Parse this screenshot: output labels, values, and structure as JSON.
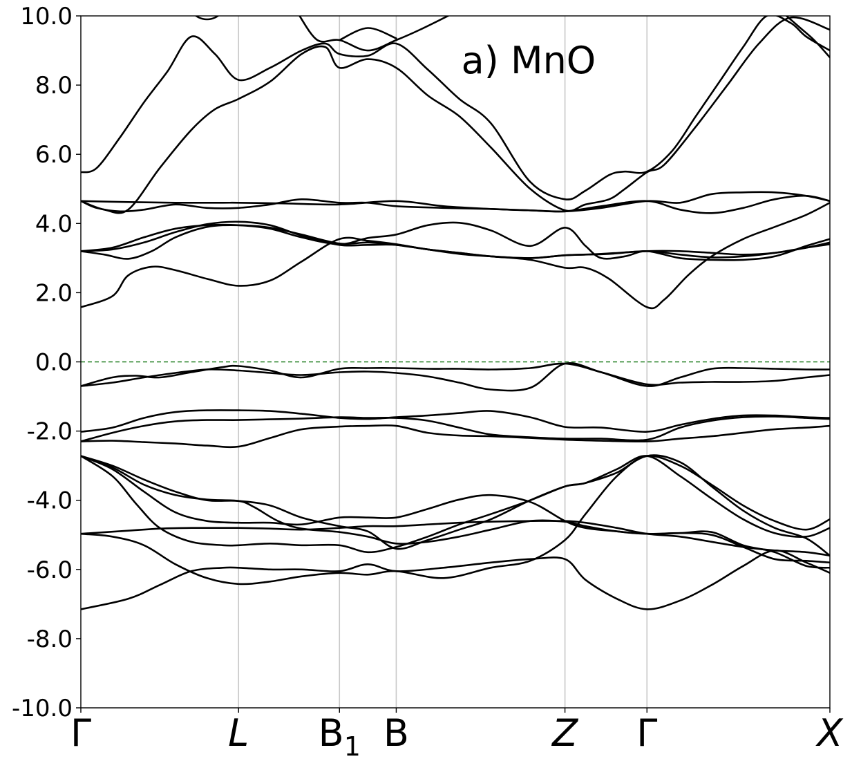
{
  "chart_data": {
    "type": "line",
    "title": "a) MnO",
    "xlabel": "",
    "ylabel": "",
    "ylim": [
      -10,
      10
    ],
    "yticks": [
      -10,
      -8,
      -6,
      -4,
      -2,
      0,
      2,
      4,
      6,
      8,
      10
    ],
    "ytick_labels": [
      "-10.0",
      "-8.0",
      "-6.0",
      "-4.0",
      "-2.0",
      "0.0",
      "2.0",
      "4.0",
      "6.0",
      "8.0",
      "10.0"
    ],
    "xlim": [
      0,
      4.75
    ],
    "kpoints": [
      {
        "label": "Γ",
        "sub": "",
        "italic": false,
        "x": 0.0
      },
      {
        "label": "L",
        "sub": "",
        "italic": true,
        "x": 1.0
      },
      {
        "label": "B",
        "sub": "1",
        "italic": false,
        "x": 1.64
      },
      {
        "label": "B",
        "sub": "",
        "italic": false,
        "x": 2.0
      },
      {
        "label": "Z",
        "sub": "",
        "italic": true,
        "x": 3.07
      },
      {
        "label": "Γ",
        "sub": "",
        "italic": false,
        "x": 3.59
      },
      {
        "label": "X",
        "sub": "",
        "italic": true,
        "x": 4.75
      }
    ],
    "fermi_level": 0.0,
    "grid": "vertical lines at high-symmetry points",
    "legend": "none",
    "colors": {
      "bands": "#000000",
      "fermi": "#1a7a1a",
      "vlines": "#c8c8c8"
    },
    "series": [
      {
        "x": [
          0,
          0.3,
          0.5,
          0.7,
          0.9,
          1.0,
          1.2,
          1.4,
          1.64,
          1.82,
          2.0,
          2.3,
          2.6,
          2.85,
          3.07,
          3.2,
          3.4,
          3.59,
          3.8,
          4.0,
          4.2,
          4.4,
          4.6,
          4.75
        ],
        "y": [
          -7.15,
          -6.85,
          -6.45,
          -6.05,
          -5.95,
          -5.95,
          -6.0,
          -6.0,
          -6.05,
          -5.85,
          -6.05,
          -5.95,
          -5.8,
          -5.7,
          -5.7,
          -6.3,
          -6.85,
          -7.15,
          -6.9,
          -6.45,
          -5.9,
          -5.45,
          -5.8,
          -6.1
        ]
      },
      {
        "x": [
          0,
          0.2,
          0.4,
          0.6,
          0.8,
          1.0,
          1.2,
          1.4,
          1.64,
          1.82,
          2.0,
          2.3,
          2.6,
          2.85,
          3.07,
          3.2,
          3.4,
          3.59,
          3.8,
          4.0,
          4.2,
          4.4,
          4.6,
          4.75
        ],
        "y": [
          -4.97,
          -5.05,
          -5.3,
          -5.85,
          -6.25,
          -6.42,
          -6.35,
          -6.2,
          -6.1,
          -6.15,
          -6.05,
          -6.25,
          -5.95,
          -5.75,
          -5.15,
          -4.4,
          -3.3,
          -2.72,
          -2.9,
          -3.6,
          -4.3,
          -4.8,
          -5.1,
          -5.6
        ]
      },
      {
        "x": [
          0,
          0.3,
          0.5,
          0.7,
          0.9,
          1.0,
          1.2,
          1.4,
          1.64,
          1.82,
          2.0,
          2.2,
          2.4,
          2.6,
          2.85,
          3.07,
          3.2,
          3.4,
          3.59,
          3.8,
          4.0,
          4.2,
          4.4,
          4.6,
          4.75
        ],
        "y": [
          -4.97,
          -4.88,
          -4.82,
          -4.8,
          -4.8,
          -4.8,
          -4.82,
          -4.85,
          -4.8,
          -4.75,
          -4.75,
          -4.7,
          -4.65,
          -4.62,
          -4.6,
          -4.6,
          -4.65,
          -4.8,
          -4.97,
          -5.05,
          -5.2,
          -5.35,
          -5.45,
          -5.5,
          -5.6
        ]
      },
      {
        "x": [
          0,
          0.2,
          0.35,
          0.5,
          0.7,
          0.9,
          1.0,
          1.2,
          1.4,
          1.64,
          1.82,
          2.0,
          2.2,
          2.4,
          2.6,
          2.85,
          3.07,
          3.2,
          3.4,
          3.59,
          3.8,
          4.0,
          4.2,
          4.4,
          4.6,
          4.75
        ],
        "y": [
          -2.72,
          -3.3,
          -4.1,
          -4.8,
          -5.2,
          -5.3,
          -5.3,
          -5.25,
          -5.3,
          -5.3,
          -5.5,
          -5.35,
          -5.05,
          -4.7,
          -4.4,
          -4.0,
          -3.6,
          -3.5,
          -3.1,
          -2.72,
          -3.3,
          -3.95,
          -4.55,
          -4.95,
          -5.05,
          -4.8
        ]
      },
      {
        "x": [
          0,
          0.2,
          0.4,
          0.6,
          0.8,
          1.0,
          1.1,
          1.25,
          1.4,
          1.64,
          1.82,
          2.0,
          2.2,
          2.4,
          2.6,
          2.85,
          3.07,
          3.2,
          3.4,
          3.59,
          3.8,
          4.0,
          4.2,
          4.4,
          4.6,
          4.75
        ],
        "y": [
          -2.72,
          -3.05,
          -3.55,
          -3.85,
          -3.98,
          -4.02,
          -4.2,
          -4.6,
          -4.82,
          -4.92,
          -5.05,
          -5.25,
          -5.2,
          -5.05,
          -4.85,
          -4.6,
          -4.62,
          -4.75,
          -4.9,
          -4.97,
          -4.95,
          -4.92,
          -5.3,
          -5.5,
          -5.9,
          -5.95
        ]
      },
      {
        "x": [
          0,
          0.2,
          0.4,
          0.6,
          0.8,
          1.0,
          1.2,
          1.4,
          1.64,
          1.82,
          2.0,
          2.2,
          2.4,
          2.6,
          2.85,
          3.07,
          3.2,
          3.4,
          3.59,
          3.8,
          4.0,
          4.2,
          4.4,
          4.6,
          4.75
        ],
        "y": [
          -2.72,
          -3.1,
          -3.75,
          -4.35,
          -4.6,
          -4.65,
          -4.65,
          -4.7,
          -4.5,
          -4.5,
          -4.5,
          -4.25,
          -3.98,
          -3.85,
          -4.05,
          -4.6,
          -4.8,
          -4.9,
          -4.97,
          -4.95,
          -5.0,
          -5.35,
          -5.7,
          -5.75,
          -5.8
        ]
      },
      {
        "x": [
          0,
          0.2,
          0.4,
          0.6,
          0.8,
          1.0,
          1.2,
          1.4,
          1.64,
          1.82,
          2.0,
          2.2,
          2.4,
          2.6,
          2.85,
          3.07,
          3.2,
          3.4,
          3.59,
          3.8,
          4.0,
          4.2,
          4.4,
          4.6,
          4.75
        ],
        "y": [
          -2.72,
          -3.0,
          -3.4,
          -3.75,
          -4.0,
          -4.02,
          -4.15,
          -4.5,
          -4.75,
          -4.9,
          -5.4,
          -5.15,
          -4.85,
          -4.55,
          -4.0,
          -3.6,
          -3.5,
          -3.2,
          -2.72,
          -3.0,
          -3.55,
          -4.15,
          -4.6,
          -4.85,
          -4.55
        ]
      },
      {
        "x": [
          0,
          0.2,
          0.4,
          0.6,
          0.8,
          1.0,
          1.2,
          1.4,
          1.64,
          1.82,
          2.0,
          2.2,
          2.4,
          2.6,
          2.85,
          3.07,
          3.3,
          3.59,
          3.8,
          4.0,
          4.2,
          4.4,
          4.6,
          4.75
        ],
        "y": [
          -2.3,
          -2.28,
          -2.32,
          -2.36,
          -2.42,
          -2.45,
          -2.2,
          -1.95,
          -1.87,
          -1.85,
          -1.85,
          -2.05,
          -2.13,
          -2.15,
          -2.2,
          -2.25,
          -2.28,
          -2.3,
          -2.22,
          -2.15,
          -2.05,
          -1.95,
          -1.9,
          -1.85
        ]
      },
      {
        "x": [
          0,
          0.2,
          0.4,
          0.6,
          0.8,
          1.0,
          1.2,
          1.4,
          1.64,
          1.82,
          2.0,
          2.2,
          2.4,
          2.6,
          2.85,
          3.07,
          3.3,
          3.59,
          3.8,
          4.0,
          4.2,
          4.4,
          4.6,
          4.75
        ],
        "y": [
          -2.3,
          -2.05,
          -1.85,
          -1.72,
          -1.68,
          -1.68,
          -1.66,
          -1.64,
          -1.6,
          -1.62,
          -1.62,
          -1.7,
          -1.9,
          -2.1,
          -2.18,
          -2.22,
          -2.22,
          -2.25,
          -1.9,
          -1.7,
          -1.6,
          -1.58,
          -1.62,
          -1.65
        ]
      },
      {
        "x": [
          0,
          0.2,
          0.4,
          0.6,
          0.8,
          1.0,
          1.2,
          1.4,
          1.64,
          1.82,
          2.0,
          2.2,
          2.4,
          2.6,
          2.85,
          3.07,
          3.3,
          3.59,
          3.8,
          4.0,
          4.2,
          4.4,
          4.6,
          4.75
        ],
        "y": [
          -2.02,
          -1.9,
          -1.62,
          -1.45,
          -1.4,
          -1.4,
          -1.42,
          -1.5,
          -1.62,
          -1.65,
          -1.6,
          -1.55,
          -1.48,
          -1.42,
          -1.6,
          -1.88,
          -1.9,
          -2.02,
          -1.82,
          -1.65,
          -1.55,
          -1.55,
          -1.6,
          -1.62
        ]
      },
      {
        "x": [
          0,
          0.2,
          0.4,
          0.6,
          0.8,
          1.0,
          1.2,
          1.4,
          1.64,
          1.82,
          2.0,
          2.2,
          2.4,
          2.6,
          2.85,
          3.07,
          3.3,
          3.59,
          3.8,
          4.0,
          4.2,
          4.4,
          4.6,
          4.75
        ],
        "y": [
          -0.7,
          -0.6,
          -0.45,
          -0.32,
          -0.22,
          -0.25,
          -0.32,
          -0.38,
          -0.3,
          -0.28,
          -0.32,
          -0.42,
          -0.6,
          -0.8,
          -0.75,
          -0.05,
          -0.3,
          -0.65,
          -0.6,
          -0.58,
          -0.58,
          -0.55,
          -0.45,
          -0.38
        ]
      },
      {
        "x": [
          0,
          0.2,
          0.35,
          0.5,
          0.7,
          0.9,
          1.0,
          1.2,
          1.4,
          1.64,
          1.82,
          2.0,
          2.2,
          2.4,
          2.6,
          2.85,
          3.07,
          3.3,
          3.59,
          3.8,
          4.0,
          4.2,
          4.4,
          4.6,
          4.75
        ],
        "y": [
          -0.7,
          -0.45,
          -0.4,
          -0.45,
          -0.3,
          -0.15,
          -0.12,
          -0.25,
          -0.45,
          -0.2,
          -0.18,
          -0.18,
          -0.2,
          -0.2,
          -0.22,
          -0.18,
          -0.05,
          -0.3,
          -0.7,
          -0.45,
          -0.2,
          -0.18,
          -0.2,
          -0.22,
          -0.22
        ]
      },
      {
        "x": [
          0,
          0.2,
          0.3,
          0.45,
          0.6,
          0.8,
          1.0,
          1.2,
          1.4,
          1.64,
          1.82,
          2.0,
          2.2,
          2.4,
          2.6,
          2.85,
          3.07,
          3.2,
          3.35,
          3.59,
          3.7,
          3.85,
          4.0,
          4.2,
          4.4,
          4.6,
          4.75
        ],
        "y": [
          1.58,
          1.9,
          2.5,
          2.75,
          2.65,
          2.4,
          2.2,
          2.35,
          2.9,
          3.55,
          3.5,
          3.4,
          3.25,
          3.15,
          3.05,
          2.95,
          2.72,
          2.72,
          2.4,
          1.58,
          1.8,
          2.5,
          3.05,
          3.55,
          3.9,
          4.25,
          4.6
        ]
      },
      {
        "x": [
          0,
          0.15,
          0.3,
          0.45,
          0.6,
          0.8,
          1.0,
          1.2,
          1.4,
          1.64,
          1.82,
          2.0,
          2.2,
          2.4,
          2.6,
          2.85,
          3.07,
          3.2,
          3.35,
          3.59,
          3.8,
          4.0,
          4.2,
          4.4,
          4.6,
          4.75
        ],
        "y": [
          3.2,
          3.1,
          2.98,
          3.2,
          3.6,
          3.9,
          3.95,
          3.88,
          3.68,
          3.42,
          3.45,
          3.38,
          3.25,
          3.15,
          3.05,
          3.0,
          3.08,
          3.1,
          3.12,
          3.2,
          3.1,
          3.02,
          3.05,
          3.15,
          3.3,
          3.4
        ]
      },
      {
        "x": [
          0,
          0.2,
          0.4,
          0.6,
          0.8,
          1.0,
          1.2,
          1.4,
          1.64,
          1.82,
          2.0,
          2.2,
          2.4,
          2.6,
          2.85,
          3.07,
          3.3,
          3.59,
          3.8,
          4.0,
          4.2,
          4.4,
          4.6,
          4.75
        ],
        "y": [
          3.2,
          3.25,
          3.45,
          3.75,
          3.98,
          4.05,
          3.95,
          3.65,
          3.38,
          3.38,
          3.38,
          3.25,
          3.12,
          3.05,
          3.0,
          3.08,
          3.12,
          3.2,
          3.2,
          3.15,
          3.1,
          3.15,
          3.3,
          3.45
        ]
      },
      {
        "x": [
          0,
          0.2,
          0.4,
          0.6,
          0.8,
          1.0,
          1.2,
          1.4,
          1.64,
          1.82,
          2.0,
          2.2,
          2.4,
          2.6,
          2.85,
          3.07,
          3.2,
          3.3,
          3.45,
          3.59,
          3.8,
          4.0,
          4.2,
          4.4,
          4.6,
          4.75
        ],
        "y": [
          3.2,
          3.3,
          3.6,
          3.85,
          3.95,
          3.95,
          3.85,
          3.6,
          3.4,
          3.58,
          3.68,
          3.95,
          4.02,
          3.8,
          3.35,
          3.88,
          3.35,
          3.0,
          3.05,
          3.2,
          3.0,
          2.95,
          2.95,
          3.05,
          3.35,
          3.55
        ]
      },
      {
        "x": [
          0,
          0.1,
          0.25,
          0.4,
          0.6,
          0.8,
          1.0,
          1.2,
          1.4,
          1.64,
          1.82,
          2.0,
          2.3,
          2.6,
          2.85,
          3.07,
          3.3,
          3.59,
          3.8,
          4.0,
          4.2,
          4.4,
          4.6,
          4.75
        ],
        "y": [
          4.65,
          4.45,
          4.35,
          4.4,
          4.55,
          4.45,
          4.45,
          4.55,
          4.7,
          4.6,
          4.6,
          4.5,
          4.45,
          4.42,
          4.38,
          4.35,
          4.5,
          4.65,
          4.4,
          4.3,
          4.45,
          4.7,
          4.8,
          4.65
        ]
      },
      {
        "x": [
          0,
          0.3,
          0.6,
          0.9,
          1.0,
          1.3,
          1.64,
          2.0,
          2.3,
          2.6,
          2.85,
          3.07,
          3.3,
          3.59,
          3.8,
          4.0,
          4.2,
          4.4,
          4.6,
          4.75
        ],
        "y": [
          4.65,
          4.62,
          4.6,
          4.6,
          4.6,
          4.58,
          4.55,
          4.65,
          4.5,
          4.42,
          4.38,
          4.35,
          4.45,
          4.65,
          4.6,
          4.85,
          4.9,
          4.9,
          4.8,
          4.65
        ]
      },
      {
        "x": [
          0,
          0.15,
          0.3,
          0.5,
          0.7,
          0.85,
          1.0,
          1.2,
          1.4,
          1.55,
          1.64,
          1.82,
          2.0,
          2.2,
          2.4,
          2.6,
          2.85,
          3.07,
          3.2,
          3.35,
          3.45,
          3.59,
          3.7,
          3.9,
          4.1,
          4.3,
          4.5,
          4.75
        ],
        "y": [
          4.65,
          4.4,
          4.4,
          5.6,
          6.7,
          7.3,
          7.6,
          8.1,
          8.9,
          9.1,
          8.5,
          8.75,
          8.5,
          7.7,
          7.1,
          6.2,
          5.0,
          4.38,
          4.55,
          4.7,
          5.0,
          5.48,
          5.7,
          6.8,
          8.0,
          9.2,
          9.95,
          9.6
        ]
      },
      {
        "x": [
          0,
          0.1,
          0.25,
          0.4,
          0.55,
          0.7,
          0.85,
          1.0,
          1.2,
          1.4,
          1.55,
          1.64,
          1.82,
          2.0,
          2.2,
          2.4,
          2.6,
          2.85,
          3.07,
          3.2,
          3.35,
          3.45,
          3.59,
          3.75,
          3.9,
          4.05,
          4.2,
          4.35,
          4.5,
          4.6,
          4.75
        ],
        "y": [
          5.48,
          5.6,
          6.5,
          7.5,
          8.4,
          9.4,
          8.9,
          8.15,
          8.5,
          9.0,
          9.2,
          8.9,
          8.85,
          9.2,
          8.45,
          7.6,
          6.9,
          5.2,
          4.7,
          4.95,
          5.4,
          5.5,
          5.5,
          6.1,
          7.1,
          8.1,
          9.1,
          10.0,
          9.8,
          9.4,
          9.0
        ]
      },
      {
        "x": [
          0.7,
          0.75,
          0.8,
          0.85,
          0.9
        ],
        "y": [
          10.1,
          9.95,
          9.9,
          9.95,
          10.1
        ]
      },
      {
        "x": [
          1.38,
          1.5,
          1.64,
          1.82,
          2.0,
          2.15,
          2.35
        ],
        "y": [
          10.05,
          9.3,
          9.3,
          9.0,
          9.3,
          9.6,
          10.05
        ]
      },
      {
        "x": [
          1.64,
          1.82,
          2.0
        ],
        "y": [
          9.3,
          9.65,
          9.35
        ]
      },
      {
        "x": [
          4.45,
          4.55,
          4.65,
          4.75
        ],
        "y": [
          10.1,
          9.7,
          9.3,
          8.8
        ]
      }
    ]
  }
}
